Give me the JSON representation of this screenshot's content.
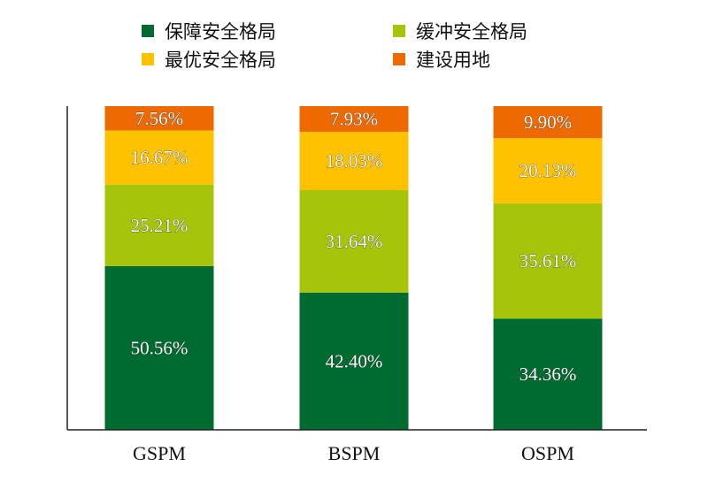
{
  "chart_data": {
    "type": "bar",
    "stacked": true,
    "categories": [
      "GSPM",
      "BSPM",
      "OSPM"
    ],
    "series": [
      {
        "name": "保障安全格局",
        "color": "#006B30",
        "values": [
          50.56,
          42.4,
          34.36
        ],
        "labels": [
          "50.56%",
          "42.40%",
          "34.36%"
        ]
      },
      {
        "name": "缓冲安全格局",
        "color": "#A6C40A",
        "values": [
          25.21,
          31.64,
          35.61
        ],
        "labels": [
          "25.21%",
          "31.64%",
          "35.61%"
        ]
      },
      {
        "name": "最优安全格局",
        "color": "#FFC200",
        "values": [
          16.67,
          18.03,
          20.13
        ],
        "labels": [
          "16.67%",
          "18.03%",
          "20.13%"
        ]
      },
      {
        "name": "建设用地",
        "color": "#EE6A00",
        "values": [
          7.56,
          7.93,
          9.9
        ],
        "labels": [
          "7.56%",
          "7.93%",
          "9.90%"
        ]
      }
    ],
    "ylim": [
      0,
      100
    ],
    "legend_position": "top",
    "grid": false
  }
}
